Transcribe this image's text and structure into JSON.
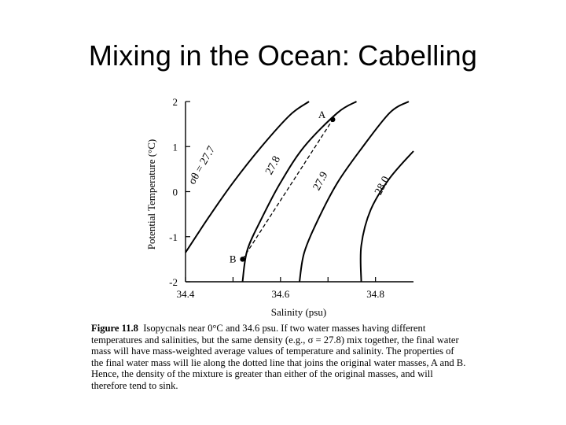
{
  "slide": {
    "title": "Mixing in the Ocean: Cabelling"
  },
  "figure": {
    "ylabel": "Potential Temperature (°C)",
    "xlabel": "Salinity (psu)",
    "y_ticks": [
      "2",
      "1",
      "0",
      "-1",
      "-2"
    ],
    "x_ticks": [
      "34.4",
      "34.6",
      "34.8"
    ],
    "point_a_label": "A",
    "point_b_label": "B",
    "isopycnal_labels": [
      "σθ = 27.7",
      "27.8",
      "27.9",
      "28.0"
    ],
    "caption_label": "Figure 11.8",
    "caption_lines": [
      "Isopycnals near 0°C and 34.6 psu.  If two water masses having different",
      "temperatures and salinities, but the same density (e.g., σ = 27.8) mix together, the final water",
      "mass will have mass-weighted average values of temperature and salinity.  The properties of",
      "the final water mass will lie along the dotted line that joins the original water masses, A and B.",
      "Hence, the density of the mixture is greater than either of the original masses, and will",
      "therefore tend to sink."
    ]
  },
  "chart_data": {
    "type": "line",
    "xlabel": "Salinity (psu)",
    "ylabel": "Potential Temperature (°C)",
    "xlim": [
      34.4,
      34.88
    ],
    "ylim": [
      -2,
      2
    ],
    "x_ticks": [
      34.4,
      34.6,
      34.8
    ],
    "y_ticks": [
      -2,
      -1,
      0,
      1,
      2
    ],
    "series": [
      {
        "name": "σθ = 27.7",
        "points": [
          [
            34.4,
            -1.35
          ],
          [
            34.45,
            -0.55
          ],
          [
            34.5,
            0.2
          ],
          [
            34.56,
            1.0
          ],
          [
            34.62,
            1.7
          ],
          [
            34.66,
            2.0
          ]
        ]
      },
      {
        "name": "27.8",
        "points": [
          [
            34.52,
            -2.0
          ],
          [
            34.53,
            -1.3
          ],
          [
            34.56,
            -0.6
          ],
          [
            34.6,
            0.2
          ],
          [
            34.65,
            1.0
          ],
          [
            34.72,
            1.75
          ],
          [
            34.76,
            2.0
          ]
        ]
      },
      {
        "name": "27.9",
        "points": [
          [
            34.64,
            -2.0
          ],
          [
            34.65,
            -1.35
          ],
          [
            34.68,
            -0.6
          ],
          [
            34.72,
            0.2
          ],
          [
            34.77,
            0.95
          ],
          [
            34.83,
            1.75
          ],
          [
            34.87,
            2.0
          ]
        ]
      },
      {
        "name": "28.0",
        "points": [
          [
            34.77,
            -2.0
          ],
          [
            34.77,
            -1.2
          ],
          [
            34.79,
            -0.4
          ],
          [
            34.83,
            0.3
          ],
          [
            34.88,
            0.9
          ]
        ]
      },
      {
        "name": "A–B mixing line",
        "dashed": true,
        "points": [
          [
            34.52,
            -1.5
          ],
          [
            34.71,
            1.6
          ]
        ]
      }
    ],
    "points": [
      {
        "label": "A",
        "x": 34.71,
        "y": 1.6
      },
      {
        "label": "B",
        "x": 34.52,
        "y": -1.5
      }
    ]
  }
}
